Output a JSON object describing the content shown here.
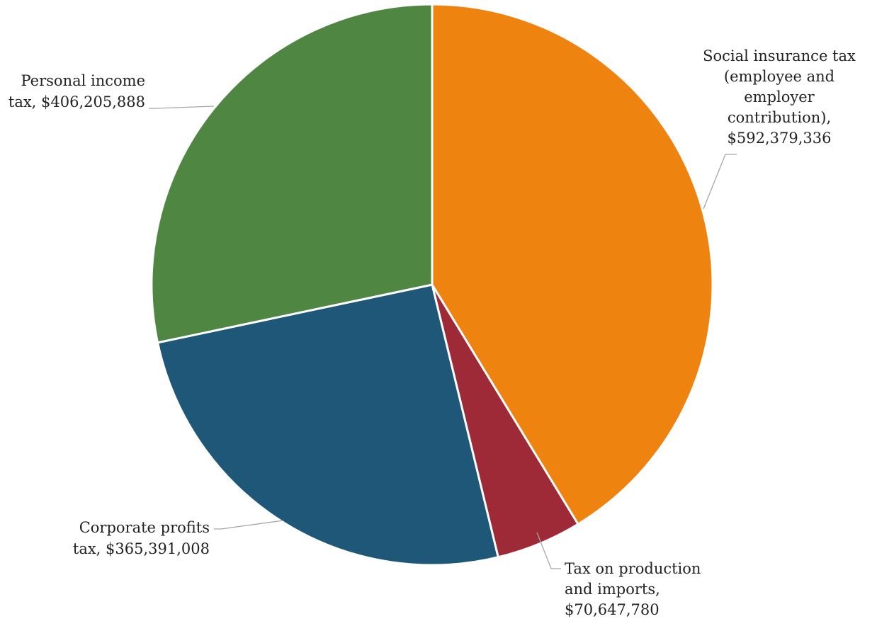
{
  "chart_data": {
    "type": "pie",
    "title": "",
    "start_angle_deg": 0,
    "direction": "clockwise",
    "slices": [
      {
        "name": "Social insurance tax (employee and employer contribution)",
        "value": 592379336,
        "label_lines": [
          "Social insurance tax",
          "(employee and",
          "employer",
          "contribution),",
          "$592,379,336"
        ],
        "color": "#ef830f"
      },
      {
        "name": "Tax on production and imports",
        "value": 70647780,
        "label_lines": [
          "Tax on production",
          "and imports,",
          "$70,647,780"
        ],
        "color": "#9e2a38"
      },
      {
        "name": "Corporate profits tax",
        "value": 365391008,
        "label_lines": [
          "Corporate profits",
          "tax, $365,391,008"
        ],
        "color": "#1f5779"
      },
      {
        "name": "Personal income tax",
        "value": 406205888,
        "label_lines": [
          "Personal income",
          "tax, $406,205,888"
        ],
        "color": "#4e8642"
      }
    ],
    "legend": "none",
    "leader_line_color": "#a6a6a6"
  }
}
